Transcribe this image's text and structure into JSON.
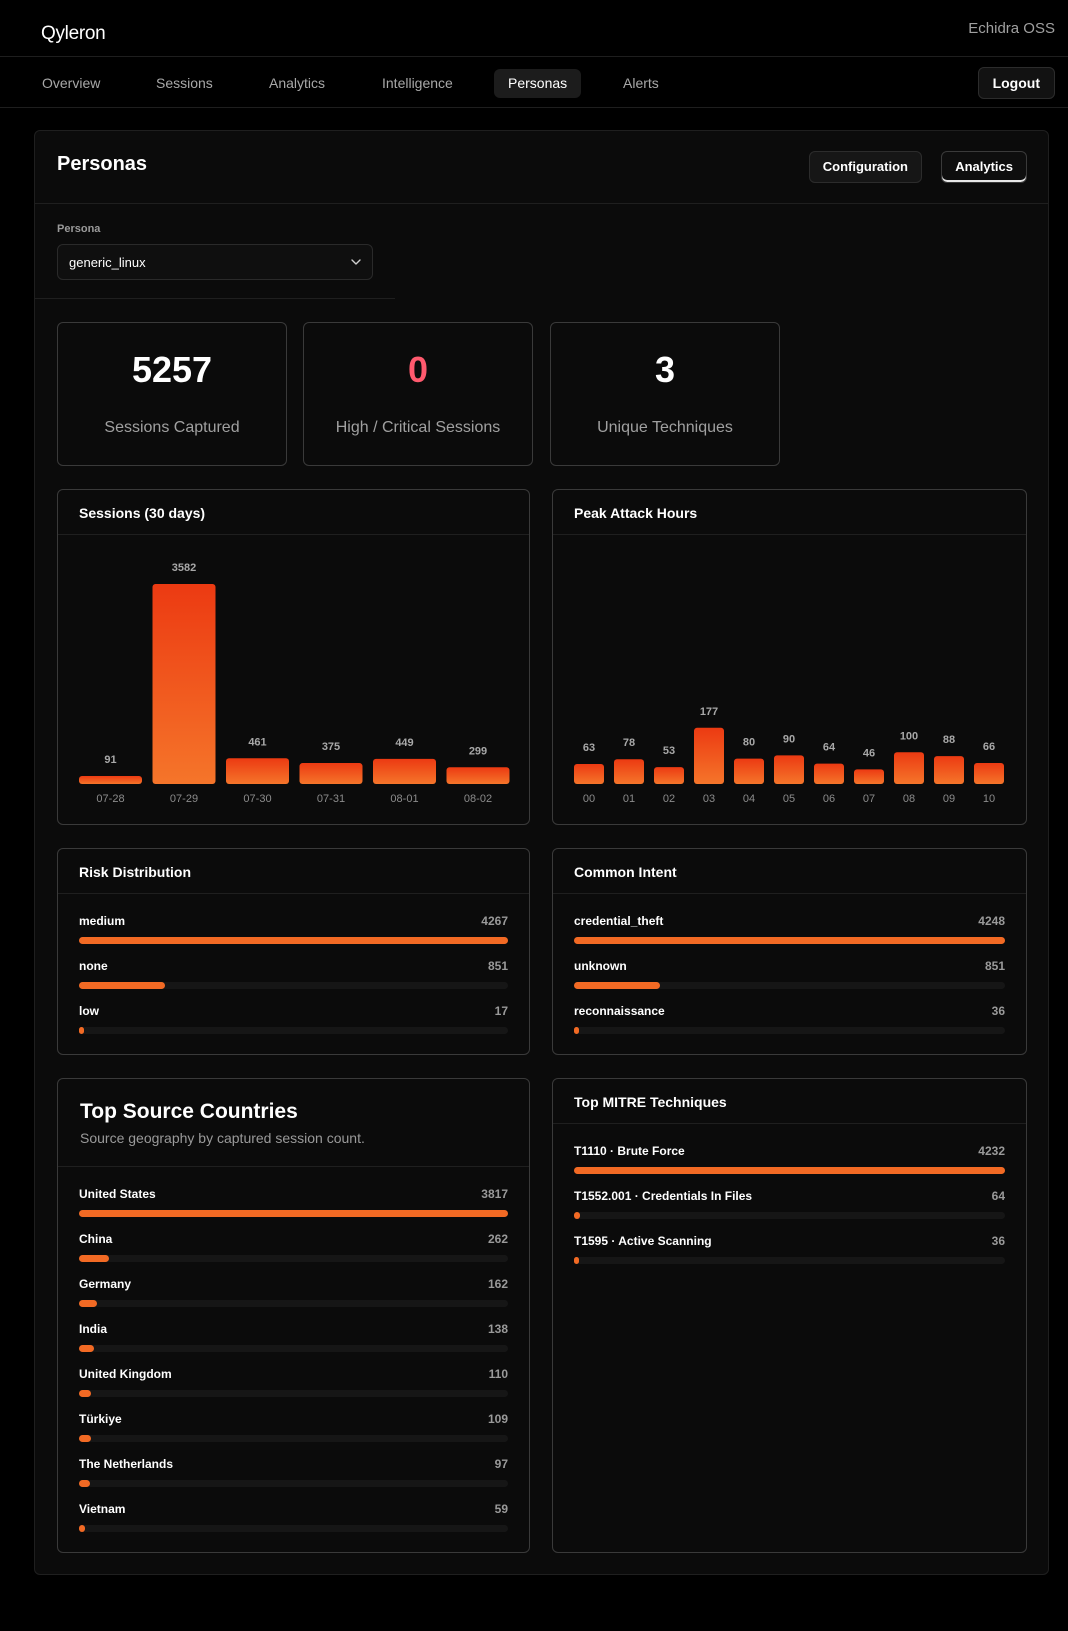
{
  "app": {
    "brand": "Qyleron",
    "org": "Echidra OSS"
  },
  "nav": {
    "tabs": [
      {
        "label": "Overview",
        "active": false
      },
      {
        "label": "Sessions",
        "active": false
      },
      {
        "label": "Analytics",
        "active": false
      },
      {
        "label": "Intelligence",
        "active": false
      },
      {
        "label": "Personas",
        "active": true
      },
      {
        "label": "Alerts",
        "active": false
      }
    ],
    "logout_label": "Logout"
  },
  "page": {
    "title": "Personas",
    "buttons": {
      "configuration": "Configuration",
      "analytics": "Analytics"
    },
    "persona_label": "Persona",
    "persona_value": "generic_linux"
  },
  "stats": [
    {
      "value": "5257",
      "label": "Sessions Captured"
    },
    {
      "value": "0",
      "label": "High / Critical Sessions"
    },
    {
      "value": "3",
      "label": "Unique Techniques"
    }
  ],
  "accent_color": "#f26a24",
  "danger_color": "#ff5a6e",
  "sessions_chart": {
    "title": "Sessions (30 days)",
    "chart_data": {
      "type": "bar",
      "categories": [
        "07-28",
        "07-29",
        "07-30",
        "07-31",
        "08-01",
        "08-02"
      ],
      "values": [
        91,
        3582,
        461,
        375,
        449,
        299
      ]
    }
  },
  "peak_chart": {
    "title": "Peak Attack Hours",
    "chart_data": {
      "type": "bar",
      "categories": [
        "00",
        "01",
        "02",
        "03",
        "04",
        "05",
        "06",
        "07",
        "08",
        "09",
        "10"
      ],
      "values": [
        63,
        78,
        53,
        177,
        80,
        90,
        64,
        46,
        100,
        88,
        66
      ]
    }
  },
  "risk": {
    "title": "Risk Distribution",
    "rows": [
      {
        "name": "medium",
        "count": "4267",
        "pct": 100
      },
      {
        "name": "none",
        "count": "851",
        "pct": 20
      },
      {
        "name": "low",
        "count": "17",
        "pct": 0.4
      }
    ]
  },
  "intent": {
    "title": "Common Intent",
    "rows": [
      {
        "name": "credential_theft",
        "count": "4248",
        "pct": 100
      },
      {
        "name": "unknown",
        "count": "851",
        "pct": 20
      },
      {
        "name": "reconnaissance",
        "count": "36",
        "pct": 0.8
      }
    ]
  },
  "countries": {
    "title": "Top Source Countries",
    "subtitle": "Source geography by captured session count.",
    "rows": [
      {
        "name": "United States",
        "count": "3817",
        "pct": 100
      },
      {
        "name": "China",
        "count": "262",
        "pct": 6.9
      },
      {
        "name": "Germany",
        "count": "162",
        "pct": 4.2
      },
      {
        "name": "India",
        "count": "138",
        "pct": 3.6
      },
      {
        "name": "United Kingdom",
        "count": "110",
        "pct": 2.9
      },
      {
        "name": "Türkiye",
        "count": "109",
        "pct": 2.9
      },
      {
        "name": "The Netherlands",
        "count": "97",
        "pct": 2.5
      },
      {
        "name": "Vietnam",
        "count": "59",
        "pct": 1.5
      }
    ]
  },
  "mitre": {
    "title": "Top MITRE Techniques",
    "rows": [
      {
        "name": "T1110 · Brute Force",
        "count": "4232",
        "pct": 100
      },
      {
        "name": "T1552.001 · Credentials In Files",
        "count": "64",
        "pct": 1.5
      },
      {
        "name": "T1595 · Active Scanning",
        "count": "36",
        "pct": 0.9
      }
    ]
  }
}
